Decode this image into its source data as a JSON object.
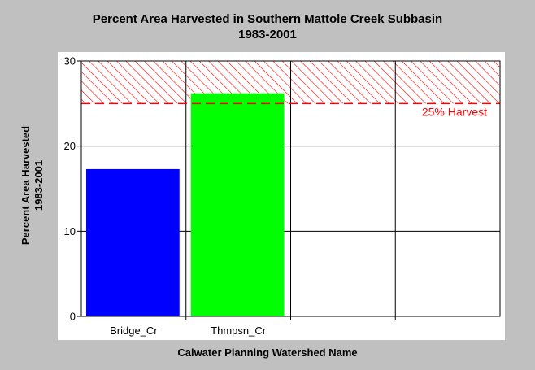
{
  "chart_data": {
    "type": "bar",
    "title": "Percent Area Harvested in Southern Mattole Creek Subbasin",
    "subtitle": "1983-2001",
    "xlabel": "Calwater Planning Watershed Name",
    "ylabel": "Percent Area Harvested",
    "ylabel_sub": "1983-2001",
    "categories": [
      "Bridge_Cr",
      "Thmpsn_Cr",
      "",
      ""
    ],
    "values": [
      17.3,
      26.2,
      null,
      null
    ],
    "colors": [
      "#0000ff",
      "#00ff00"
    ],
    "ylim": [
      0,
      30
    ],
    "yticks": [
      0,
      10,
      20,
      30
    ],
    "grid": true,
    "threshold": {
      "value": 25,
      "label": "25% Harvest",
      "color": "#ff0000",
      "hatch_to": 30
    }
  }
}
